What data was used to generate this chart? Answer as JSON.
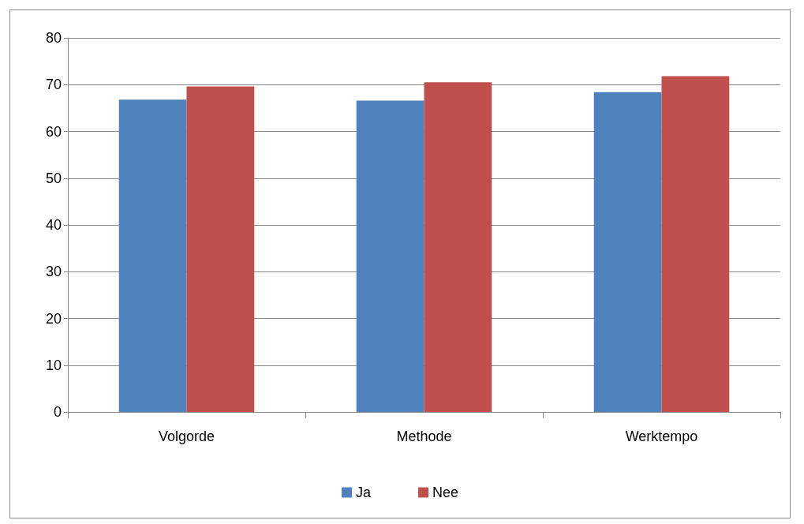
{
  "chart_data": {
    "type": "bar",
    "categories": [
      "Volgorde",
      "Methode",
      "Werktempo"
    ],
    "series": [
      {
        "name": "Ja",
        "color": "#4f81bd",
        "values": [
          66.8,
          66.6,
          68.4
        ]
      },
      {
        "name": "Nee",
        "color": "#c0504d",
        "values": [
          69.6,
          70.5,
          71.8
        ]
      }
    ],
    "ylim": [
      0,
      80
    ],
    "yticks": [
      0,
      10,
      20,
      30,
      40,
      50,
      60,
      70,
      80
    ],
    "grid": "y",
    "legend": "bottom"
  }
}
